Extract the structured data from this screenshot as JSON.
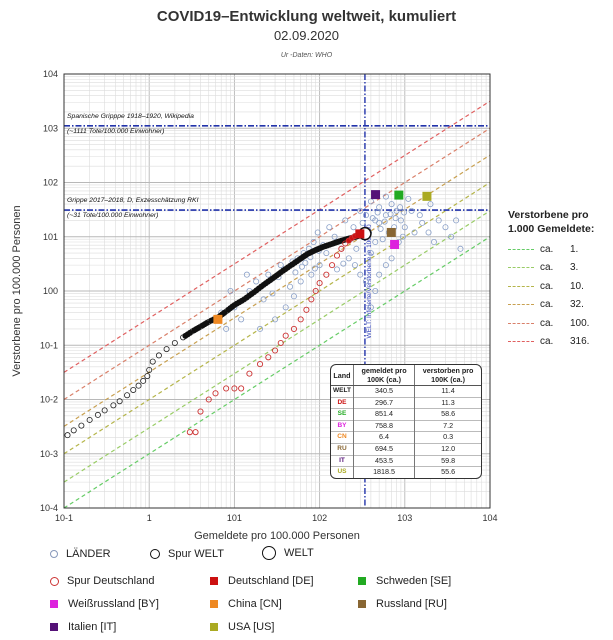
{
  "chart_data": {
    "type": "scatter",
    "title": "COVID19–Entwicklung weltweit, kumuliert",
    "subtitle": "02.09.2020",
    "source": "Ur -Daten: WHO",
    "xlabel": "Gemeldete pro 100.000 Personen",
    "ylabel": "Verstorbene pro 100.000 Personen",
    "xscale": "log",
    "yscale": "log",
    "xlim": [
      0.1,
      10000
    ],
    "ylim": [
      0.0001,
      10000
    ],
    "x_ticks": [
      "10-1",
      "1",
      "101",
      "102",
      "103",
      "104"
    ],
    "y_ticks": [
      "10-4",
      "10-3",
      "10-2",
      "10-1",
      "100",
      "101",
      "102",
      "103",
      "104"
    ],
    "grid": true,
    "reference_lines": [
      {
        "label": "Spanische Gripppe 1918–1920, Wikipedia",
        "sublabel": "(~1111 Tote/100.000 Einwohner)",
        "y": 1111
      },
      {
        "label": "Grippe 2017–2018, D, Exzesschätzung RKI",
        "sublabel": "(~31 Tote/100.000 Einwohner)",
        "y": 31
      }
    ],
    "vertical_line": {
      "x": 340.5,
      "label": "WELT: Infizierte/Verstorbene je 100.000"
    },
    "cfr_lines_header": "Verstorbene pro 1.000 Gemeldete:",
    "cfr_prefix": "ca.",
    "cfr_lines": [
      {
        "label": "1.",
        "ratio": 0.001,
        "color": "#66cc66"
      },
      {
        "label": "3.",
        "ratio": 0.003,
        "color": "#99cc66"
      },
      {
        "label": "10.",
        "ratio": 0.01,
        "color": "#b5b54a"
      },
      {
        "label": "32.",
        "ratio": 0.032,
        "color": "#c8a050"
      },
      {
        "label": "100.",
        "ratio": 0.1,
        "color": "#d9806a"
      },
      {
        "label": "316.",
        "ratio": 0.316,
        "color": "#e06060"
      }
    ],
    "spur_welt": [
      [
        0.11,
        0.0022
      ],
      [
        0.13,
        0.0027
      ],
      [
        0.16,
        0.0033
      ],
      [
        0.2,
        0.0042
      ],
      [
        0.25,
        0.0052
      ],
      [
        0.3,
        0.0063
      ],
      [
        0.38,
        0.0078
      ],
      [
        0.45,
        0.0093
      ],
      [
        0.55,
        0.012
      ],
      [
        0.65,
        0.015
      ],
      [
        0.75,
        0.018
      ],
      [
        0.85,
        0.022
      ],
      [
        0.95,
        0.027
      ],
      [
        1.0,
        0.035
      ],
      [
        1.1,
        0.05
      ],
      [
        1.3,
        0.065
      ],
      [
        1.6,
        0.085
      ],
      [
        2.0,
        0.11
      ],
      [
        2.5,
        0.14
      ],
      [
        3.2,
        0.18
      ],
      [
        4,
        0.22
      ],
      [
        5,
        0.27
      ],
      [
        6.5,
        0.33
      ],
      [
        8,
        0.42
      ],
      [
        10,
        0.55
      ],
      [
        13,
        0.7
      ],
      [
        17,
        0.95
      ],
      [
        22,
        1.3
      ],
      [
        28,
        1.7
      ],
      [
        35,
        2.2
      ],
      [
        45,
        2.9
      ],
      [
        58,
        3.8
      ],
      [
        72,
        4.8
      ],
      [
        90,
        5.7
      ],
      [
        110,
        6.5
      ],
      [
        140,
        7.4
      ],
      [
        170,
        8.2
      ],
      [
        210,
        9.1
      ],
      [
        260,
        9.9
      ],
      [
        300,
        10.6
      ],
      [
        340.5,
        11.4
      ]
    ],
    "spur_deutschland": [
      [
        3,
        0.0025
      ],
      [
        3.5,
        0.0025
      ],
      [
        4,
        0.006
      ],
      [
        5,
        0.01
      ],
      [
        6,
        0.013
      ],
      [
        8,
        0.016
      ],
      [
        10,
        0.016
      ],
      [
        12,
        0.016
      ],
      [
        15,
        0.03
      ],
      [
        20,
        0.045
      ],
      [
        25,
        0.06
      ],
      [
        30,
        0.08
      ],
      [
        35,
        0.11
      ],
      [
        40,
        0.15
      ],
      [
        50,
        0.2
      ],
      [
        60,
        0.3
      ],
      [
        70,
        0.45
      ],
      [
        80,
        0.7
      ],
      [
        90,
        1.0
      ],
      [
        100,
        1.4
      ],
      [
        120,
        2.0
      ],
      [
        140,
        3.0
      ],
      [
        160,
        4.5
      ],
      [
        180,
        6.0
      ],
      [
        200,
        7.5
      ],
      [
        220,
        8.5
      ],
      [
        240,
        9.5
      ],
      [
        260,
        10.3
      ],
      [
        280,
        10.8
      ],
      [
        296.7,
        11.3
      ]
    ],
    "countries": [
      {
        "code": "DE",
        "name": "Deutschland [DE]",
        "gemeldet": 296.7,
        "verstorben": 11.3,
        "color": "#cc1111"
      },
      {
        "code": "SE",
        "name": "Schweden [SE]",
        "gemeldet": 851.4,
        "verstorben": 58.6,
        "color": "#22aa22"
      },
      {
        "code": "BY",
        "name": "Weißrussland [BY]",
        "gemeldet": 758.8,
        "verstorben": 7.2,
        "color": "#dd22dd"
      },
      {
        "code": "CN",
        "name": "China [CN]",
        "gemeldet": 6.4,
        "verstorben": 0.3,
        "color": "#ee8822"
      },
      {
        "code": "RU",
        "name": "Russland [RU]",
        "gemeldet": 694.5,
        "verstorben": 12.0,
        "color": "#886633"
      },
      {
        "code": "IT",
        "name": "Italien [IT]",
        "gemeldet": 453.5,
        "verstorben": 59.8,
        "color": "#551177"
      },
      {
        "code": "US",
        "name": "USA [US]",
        "gemeldet": 1818.5,
        "verstorben": 55.6,
        "color": "#aaaa22"
      }
    ],
    "welt": {
      "gemeldet": 340.5,
      "verstorben": 11.4
    },
    "laender_sample": [
      [
        200,
        20
      ],
      [
        250,
        15
      ],
      [
        300,
        30
      ],
      [
        350,
        25
      ],
      [
        400,
        45
      ],
      [
        450,
        20
      ],
      [
        500,
        35
      ],
      [
        600,
        25
      ],
      [
        700,
        40
      ],
      [
        800,
        30
      ],
      [
        900,
        20
      ],
      [
        1000,
        15
      ],
      [
        1200,
        30
      ],
      [
        1500,
        25
      ],
      [
        2000,
        40
      ],
      [
        2500,
        20
      ],
      [
        3000,
        15
      ],
      [
        1100,
        50
      ],
      [
        600,
        55
      ],
      [
        500,
        18
      ],
      [
        150,
        10
      ],
      [
        120,
        5
      ],
      [
        100,
        3
      ],
      [
        80,
        2
      ],
      [
        60,
        1.5
      ],
      [
        50,
        0.8
      ],
      [
        40,
        0.5
      ],
      [
        30,
        0.3
      ],
      [
        20,
        0.2
      ],
      [
        15,
        1
      ],
      [
        25,
        2
      ],
      [
        35,
        3
      ],
      [
        45,
        1.2
      ],
      [
        55,
        4
      ],
      [
        65,
        5
      ],
      [
        75,
        6
      ],
      [
        85,
        8
      ],
      [
        95,
        12
      ],
      [
        130,
        15
      ],
      [
        180,
        6
      ],
      [
        220,
        4
      ],
      [
        260,
        3
      ],
      [
        300,
        2
      ],
      [
        350,
        1.5
      ],
      [
        400,
        5
      ],
      [
        450,
        8
      ],
      [
        550,
        9
      ],
      [
        650,
        12
      ],
      [
        750,
        15
      ],
      [
        850,
        8
      ],
      [
        950,
        10
      ],
      [
        1300,
        12
      ],
      [
        1600,
        18
      ],
      [
        1900,
        12
      ],
      [
        2200,
        8
      ],
      [
        3500,
        10
      ],
      [
        4000,
        20
      ],
      [
        4500,
        6
      ],
      [
        700,
        4
      ],
      [
        600,
        3
      ],
      [
        500,
        2
      ],
      [
        450,
        1
      ],
      [
        400,
        0.5
      ],
      [
        10,
        0.5
      ],
      [
        12,
        0.3
      ],
      [
        8,
        0.2
      ],
      [
        7,
        0.4
      ],
      [
        9,
        1
      ],
      [
        14,
        2
      ],
      [
        18,
        1.5
      ],
      [
        22,
        0.7
      ],
      [
        28,
        0.9
      ],
      [
        33,
        1.8
      ],
      [
        38,
        2.5
      ],
      [
        48,
        3.5
      ],
      [
        52,
        2.2
      ],
      [
        62,
        2.8
      ],
      [
        68,
        3.3
      ],
      [
        78,
        4.2
      ],
      [
        88,
        2.6
      ],
      [
        98,
        5.5
      ],
      [
        110,
        7
      ],
      [
        160,
        2.5
      ],
      [
        190,
        3.2
      ],
      [
        230,
        9
      ],
      [
        270,
        6
      ],
      [
        320,
        18
      ],
      [
        380,
        12
      ],
      [
        420,
        22
      ],
      [
        480,
        28
      ],
      [
        520,
        14
      ],
      [
        580,
        19
      ],
      [
        680,
        26
      ],
      [
        780,
        22
      ],
      [
        880,
        35
      ],
      [
        980,
        28
      ]
    ],
    "table": {
      "headers": [
        "Land",
        "gemeldet pro 100K (ca.)",
        "verstorben pro 100K (ca.)"
      ],
      "rows": [
        {
          "label": "WELT",
          "gemeldet": "340.5",
          "verstorben": "11.4"
        },
        {
          "label": "DE",
          "gemeldet": "296.7",
          "verstorben": "11.3"
        },
        {
          "label": "SE",
          "gemeldet": "851.4",
          "verstorben": "58.6"
        },
        {
          "label": "BY",
          "gemeldet": "758.8",
          "verstorben": "7.2"
        },
        {
          "label": "CN",
          "gemeldet": "6.4",
          "verstorben": "0.3"
        },
        {
          "label": "RU",
          "gemeldet": "694.5",
          "verstorben": "12.0"
        },
        {
          "label": "IT",
          "gemeldet": "453.5",
          "verstorben": "59.8"
        },
        {
          "label": "US",
          "gemeldet": "1818.5",
          "verstorben": "55.6"
        }
      ]
    },
    "legend": {
      "laender": "LÄNDER",
      "spur_welt": "Spur WELT",
      "welt": "WELT",
      "spur_deutschland": "Spur Deutschland"
    }
  }
}
